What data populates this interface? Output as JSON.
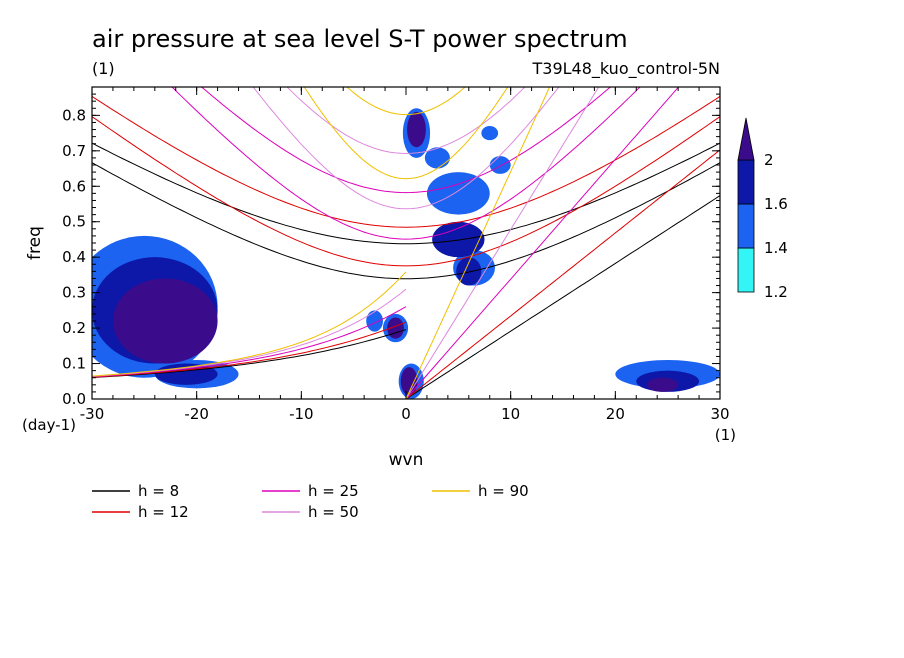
{
  "chart_data": {
    "type": "heatmap",
    "title": "air pressure at sea level S-T power spectrum",
    "units_label": "(1)",
    "run_label": "T39L48_kuo_control-5N",
    "xlabel": "wvn",
    "ylabel": "freq",
    "x_unit_label": "(1)",
    "y_unit_label": "(day-1)",
    "xlim": [
      -30,
      30
    ],
    "ylim": [
      0,
      0.88
    ],
    "x_ticks": [
      "-30",
      "-20",
      "-10",
      "0",
      "10",
      "20",
      "30"
    ],
    "y_ticks": [
      "0.0",
      "0.1",
      "0.2",
      "0.3",
      "0.4",
      "0.5",
      "0.6",
      "0.7",
      "0.8"
    ],
    "colorbar": {
      "levels": [
        "1.2",
        "1.4",
        "1.6",
        "2"
      ],
      "colors": [
        "#33f5f5",
        "#1b63f0",
        "#0d17a8",
        "#3a0c8c"
      ]
    },
    "dispersion_curves": [
      {
        "label": "h =  8",
        "h": 8,
        "color": "#000000"
      },
      {
        "label": "h = 12",
        "h": 12,
        "color": "#e00000"
      },
      {
        "label": "h = 25",
        "h": 25,
        "color": "#dd00bb"
      },
      {
        "label": "h = 50",
        "h": 50,
        "color": "#dd88dd"
      },
      {
        "label": "h = 90",
        "h": 90,
        "color": "#f0c000"
      }
    ],
    "power_regions": [
      {
        "level": 1,
        "cx": -25,
        "cy": 0.26,
        "rx": 7,
        "ry": 0.2
      },
      {
        "level": 2,
        "cx": -24,
        "cy": 0.25,
        "rx": 6,
        "ry": 0.15
      },
      {
        "level": 3,
        "cx": -23,
        "cy": 0.22,
        "rx": 5,
        "ry": 0.12
      },
      {
        "level": 1,
        "cx": -20,
        "cy": 0.07,
        "rx": 4,
        "ry": 0.04
      },
      {
        "level": 2,
        "cx": -21,
        "cy": 0.07,
        "rx": 3,
        "ry": 0.03
      },
      {
        "level": 1,
        "cx": 1,
        "cy": 0.75,
        "rx": 1.3,
        "ry": 0.07
      },
      {
        "level": 3,
        "cx": 1,
        "cy": 0.76,
        "rx": 0.9,
        "ry": 0.05
      },
      {
        "level": 1,
        "cx": 5,
        "cy": 0.58,
        "rx": 3,
        "ry": 0.06
      },
      {
        "level": 2,
        "cx": 5,
        "cy": 0.45,
        "rx": 2.5,
        "ry": 0.05
      },
      {
        "level": 1,
        "cx": 6.5,
        "cy": 0.37,
        "rx": 2,
        "ry": 0.05
      },
      {
        "level": 2,
        "cx": 6,
        "cy": 0.36,
        "rx": 1.2,
        "ry": 0.04
      },
      {
        "level": 1,
        "cx": -1,
        "cy": 0.2,
        "rx": 1.2,
        "ry": 0.04
      },
      {
        "level": 3,
        "cx": -1,
        "cy": 0.2,
        "rx": 0.8,
        "ry": 0.03
      },
      {
        "level": 1,
        "cx": 0.5,
        "cy": 0.05,
        "rx": 1.2,
        "ry": 0.05
      },
      {
        "level": 3,
        "cx": 0.3,
        "cy": 0.05,
        "rx": 0.8,
        "ry": 0.04
      },
      {
        "level": 1,
        "cx": 25,
        "cy": 0.07,
        "rx": 5,
        "ry": 0.04
      },
      {
        "level": 2,
        "cx": 25,
        "cy": 0.05,
        "rx": 3,
        "ry": 0.03
      },
      {
        "level": 3,
        "cx": 24.5,
        "cy": 0.04,
        "rx": 1.5,
        "ry": 0.02
      },
      {
        "level": 1,
        "cx": 3,
        "cy": 0.68,
        "rx": 1.2,
        "ry": 0.03
      },
      {
        "level": 1,
        "cx": 8,
        "cy": 0.75,
        "rx": 0.8,
        "ry": 0.02
      },
      {
        "level": 1,
        "cx": -3,
        "cy": 0.22,
        "rx": 0.8,
        "ry": 0.03
      },
      {
        "level": 1,
        "cx": 9,
        "cy": 0.66,
        "rx": 1.0,
        "ry": 0.025
      }
    ]
  }
}
